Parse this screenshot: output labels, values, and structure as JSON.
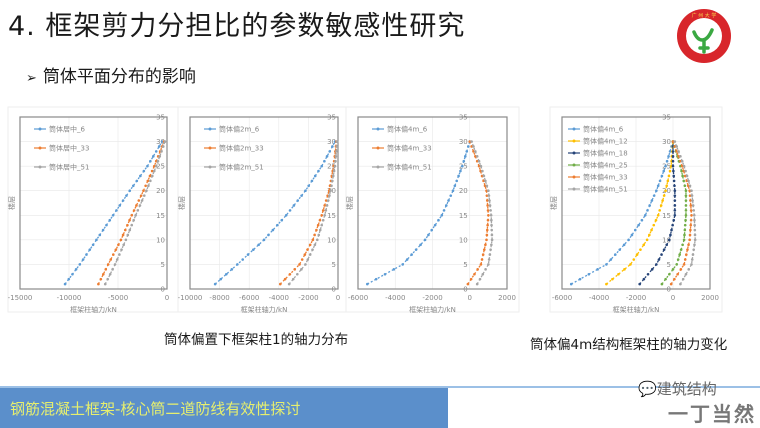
{
  "slide": {
    "title": "4.  框架剪力分担比的参数敏感性研究",
    "bullet": "筒体平面分布的影响",
    "bullet_marker": "➢",
    "caption_left": "筒体偏置下框架柱1的轴力分布",
    "caption_right": "筒体偏4m结构框架柱的轴力变化",
    "footer_text": "钢筋混凝土框架-核心筒二道防线有效性探讨",
    "watermark_line1": "建筑结构",
    "watermark_line2": "一丁当然",
    "logo": {
      "top_text": "广州大学",
      "bottom_text": "GUANGZHOU UNIVERSITY"
    },
    "colors": {
      "footer_bg": "#5b8fcb",
      "footer_text": "#e7ef6e",
      "series_blue": "#5b9bd5",
      "series_orange": "#ed7d31",
      "series_gray": "#a5a5a5",
      "series_yellow": "#ffc000",
      "series_navy": "#264478",
      "series_green": "#70ad47"
    }
  },
  "chart_data": [
    {
      "type": "line",
      "title": "",
      "xlabel": "框架柱轴力/kN",
      "ylabel": "楼层",
      "xlim": [
        -15000,
        0
      ],
      "ylim": [
        0,
        35
      ],
      "xticks": [
        -15000,
        -10000,
        -5000,
        0
      ],
      "yticks": [
        0,
        5,
        10,
        15,
        20,
        25,
        30,
        35
      ],
      "legend_position": "upper-left",
      "series": [
        {
          "name": "筒体居中_6",
          "x": [
            -10400,
            -8900,
            -7200,
            -5500,
            -3800,
            -2000,
            -500
          ],
          "y": [
            1,
            5,
            10,
            15,
            20,
            25,
            30
          ]
        },
        {
          "name": "筒体居中_33",
          "x": [
            -7000,
            -6000,
            -4700,
            -3600,
            -2400,
            -1300,
            -300
          ],
          "y": [
            1,
            5,
            10,
            15,
            20,
            25,
            30
          ]
        },
        {
          "name": "筒体居中_51",
          "x": [
            -6300,
            -5300,
            -4200,
            -3200,
            -2100,
            -1100,
            -200
          ],
          "y": [
            1,
            5,
            10,
            15,
            20,
            25,
            30
          ]
        }
      ]
    },
    {
      "type": "line",
      "title": "",
      "xlabel": "框架柱轴力/kN",
      "ylabel": "楼层",
      "xlim": [
        -10000,
        0
      ],
      "ylim": [
        0,
        35
      ],
      "xticks": [
        -10000,
        -8000,
        -6000,
        -4000,
        -2000,
        0
      ],
      "yticks": [
        0,
        5,
        10,
        15,
        20,
        25,
        30,
        35
      ],
      "legend_position": "upper-left",
      "series": [
        {
          "name": "筒体偏2m_6",
          "x": [
            -8300,
            -6800,
            -5000,
            -3500,
            -2200,
            -1100,
            -200
          ],
          "y": [
            1,
            5,
            10,
            15,
            20,
            25,
            30
          ]
        },
        {
          "name": "筒体偏2m_33",
          "x": [
            -3900,
            -2600,
            -1700,
            -1100,
            -600,
            -300,
            -100
          ],
          "y": [
            1,
            5,
            10,
            15,
            20,
            25,
            30
          ]
        },
        {
          "name": "筒体偏2m_51",
          "x": [
            -3300,
            -2200,
            -1400,
            -900,
            -500,
            -200,
            -50
          ],
          "y": [
            1,
            5,
            10,
            15,
            20,
            25,
            30
          ]
        }
      ]
    },
    {
      "type": "line",
      "title": "",
      "xlabel": "框架柱轴力/kN",
      "ylabel": "楼层",
      "xlim": [
        -6000,
        2000
      ],
      "ylim": [
        0,
        35
      ],
      "xticks": [
        -6000,
        -4000,
        -2000,
        0,
        2000
      ],
      "yticks": [
        0,
        5,
        10,
        15,
        20,
        25,
        30,
        35
      ],
      "legend_position": "upper-left",
      "series": [
        {
          "name": "筒体偏4m_6",
          "x": [
            -5500,
            -3600,
            -2400,
            -1500,
            -900,
            -400,
            0
          ],
          "y": [
            1,
            5,
            10,
            15,
            20,
            25,
            30
          ]
        },
        {
          "name": "筒体偏4m_33",
          "x": [
            -100,
            600,
            900,
            1000,
            900,
            500,
            0
          ],
          "y": [
            1,
            5,
            10,
            15,
            20,
            25,
            30
          ]
        },
        {
          "name": "筒体偏4m_51",
          "x": [
            400,
            1000,
            1200,
            1150,
            1000,
            600,
            100
          ],
          "y": [
            1,
            5,
            10,
            15,
            20,
            25,
            30
          ]
        }
      ]
    },
    {
      "type": "line",
      "title": "",
      "xlabel": "框架柱轴力/kN",
      "ylabel": "楼层",
      "xlim": [
        -6000,
        2000
      ],
      "ylim": [
        0,
        35
      ],
      "xticks": [
        -6000,
        -4000,
        -2000,
        0,
        2000
      ],
      "yticks": [
        0,
        5,
        10,
        15,
        20,
        25,
        30,
        35
      ],
      "legend_position": "upper-left",
      "series": [
        {
          "name": "筒体偏4m_6",
          "x": [
            -5500,
            -3600,
            -2400,
            -1500,
            -900,
            -400,
            0
          ],
          "y": [
            1,
            5,
            10,
            15,
            20,
            25,
            30
          ]
        },
        {
          "name": "筒体偏4m_12",
          "x": [
            -3600,
            -2300,
            -1400,
            -800,
            -400,
            -100,
            0
          ],
          "y": [
            1,
            5,
            10,
            15,
            20,
            25,
            30
          ]
        },
        {
          "name": "筒体偏4m_18",
          "x": [
            -1800,
            -900,
            -200,
            100,
            100,
            0,
            0
          ],
          "y": [
            1,
            5,
            10,
            15,
            20,
            25,
            30
          ]
        },
        {
          "name": "筒体偏4m_25",
          "x": [
            -600,
            200,
            600,
            700,
            700,
            400,
            0
          ],
          "y": [
            1,
            5,
            10,
            15,
            20,
            25,
            30
          ]
        },
        {
          "name": "筒体偏4m_33",
          "x": [
            -100,
            600,
            900,
            1000,
            900,
            500,
            0
          ],
          "y": [
            1,
            5,
            10,
            15,
            20,
            25,
            30
          ]
        },
        {
          "name": "筒体偏4m_51",
          "x": [
            400,
            1000,
            1200,
            1150,
            1000,
            600,
            100
          ],
          "y": [
            1,
            5,
            10,
            15,
            20,
            25,
            30
          ]
        }
      ]
    }
  ]
}
